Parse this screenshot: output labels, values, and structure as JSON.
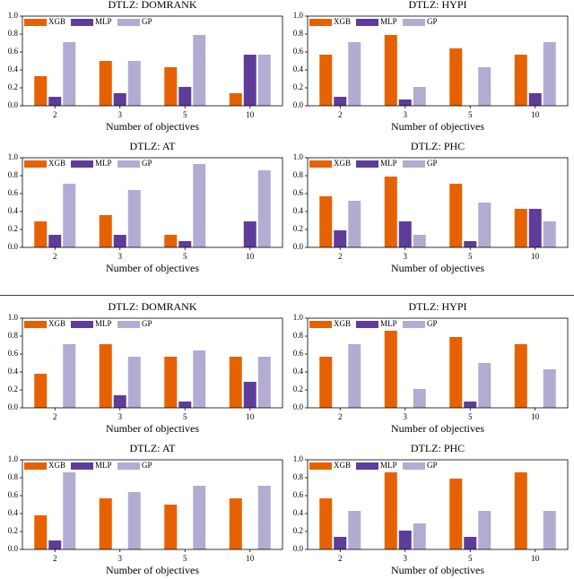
{
  "chart_data": [
    {
      "type": "bar",
      "title": "DTLZ: DOMRANK",
      "x_label": "Number of objectives",
      "categories": [
        "2",
        "3",
        "5",
        "10"
      ],
      "series": [
        {
          "name": "XGB",
          "color": "#e66101",
          "values": [
            0.33,
            0.5,
            0.43,
            0.14
          ]
        },
        {
          "name": "MLP",
          "color": "#5e3c99",
          "values": [
            0.1,
            0.14,
            0.21,
            0.57
          ]
        },
        {
          "name": "GP",
          "color": "#b2abd2",
          "values": [
            0.71,
            0.5,
            0.79,
            0.57
          ]
        }
      ],
      "ylim": [
        0,
        1
      ],
      "yticks": [
        {
          "value": 0,
          "label": "0.0"
        },
        0.2,
        0.4,
        0.6,
        0.8,
        {
          "value": 1,
          "label": "1.0"
        }
      ],
      "legend": "upper left"
    },
    {
      "type": "bar",
      "title": "DTLZ: HYPI",
      "x_label": "Number of objectives",
      "categories": [
        "2",
        "3",
        "5",
        "10"
      ],
      "series": [
        {
          "name": "XGB",
          "color": "#e66101",
          "values": [
            0.57,
            0.79,
            0.64,
            0.57
          ]
        },
        {
          "name": "MLP",
          "color": "#5e3c99",
          "values": [
            0.1,
            0.07,
            0,
            0.14
          ]
        },
        {
          "name": "GP",
          "color": "#b2abd2",
          "values": [
            0.71,
            0.21,
            0.43,
            0.71
          ]
        }
      ],
      "ylim": [
        0,
        1
      ],
      "yticks": [
        {
          "value": 0,
          "label": "0.0"
        },
        0.2,
        0.4,
        0.6,
        0.8,
        {
          "value": 1,
          "label": "1.0"
        }
      ],
      "legend": "upper left"
    },
    {
      "type": "bar",
      "title": "DTLZ: AT",
      "x_label": "Number of objectives",
      "categories": [
        "2",
        "3",
        "5",
        "10"
      ],
      "series": [
        {
          "name": "XGB",
          "color": "#e66101",
          "values": [
            0.29,
            0.36,
            0.14,
            0
          ]
        },
        {
          "name": "MLP",
          "color": "#5e3c99",
          "values": [
            0.14,
            0.14,
            0.07,
            0.29
          ]
        },
        {
          "name": "GP",
          "color": "#b2abd2",
          "values": [
            0.71,
            0.64,
            0.93,
            0.86
          ]
        }
      ],
      "ylim": [
        0,
        1
      ],
      "yticks": [
        {
          "value": 0,
          "label": "0.0"
        },
        0.2,
        0.4,
        0.6,
        0.8,
        {
          "value": 1,
          "label": "1.0"
        }
      ],
      "legend": "upper left"
    },
    {
      "type": "bar",
      "title": "DTLZ: PHC",
      "x_label": "Number of objectives",
      "categories": [
        "2",
        "3",
        "5",
        "10"
      ],
      "series": [
        {
          "name": "XGB",
          "color": "#e66101",
          "values": [
            0.57,
            0.79,
            0.71,
            0.43
          ]
        },
        {
          "name": "MLP",
          "color": "#5e3c99",
          "values": [
            0.19,
            0.29,
            0.07,
            0.43
          ]
        },
        {
          "name": "GP",
          "color": "#b2abd2",
          "values": [
            0.52,
            0.14,
            0.5,
            0.29
          ]
        }
      ],
      "ylim": [
        0,
        1
      ],
      "yticks": [
        {
          "value": 0,
          "label": "0.0"
        },
        0.2,
        0.4,
        0.6,
        0.8,
        {
          "value": 1,
          "label": "1.0"
        }
      ],
      "legend": "upper left"
    },
    {
      "type": "bar",
      "title": "DTLZ: DOMRANK",
      "x_label": "Number of objectives",
      "categories": [
        "2",
        "3",
        "5",
        "10"
      ],
      "series": [
        {
          "name": "XGB",
          "color": "#e66101",
          "values": [
            0.38,
            0.71,
            0.57,
            0.57
          ]
        },
        {
          "name": "MLP",
          "color": "#5e3c99",
          "values": [
            0,
            0.14,
            0.07,
            0.29
          ]
        },
        {
          "name": "GP",
          "color": "#b2abd2",
          "values": [
            0.71,
            0.57,
            0.64,
            0.57
          ]
        }
      ],
      "ylim": [
        0,
        1
      ],
      "yticks": [
        {
          "value": 0,
          "label": "0.0"
        },
        0.2,
        0.4,
        0.6,
        0.8,
        {
          "value": 1,
          "label": "1.0"
        }
      ],
      "legend": "upper left"
    },
    {
      "type": "bar",
      "title": "DTLZ: HYPI",
      "x_label": "Number of objectives",
      "categories": [
        "2",
        "3",
        "5",
        "10"
      ],
      "series": [
        {
          "name": "XGB",
          "color": "#e66101",
          "values": [
            0.57,
            0.86,
            0.79,
            0.71
          ]
        },
        {
          "name": "MLP",
          "color": "#5e3c99",
          "values": [
            0,
            0,
            0.07,
            0
          ]
        },
        {
          "name": "GP",
          "color": "#b2abd2",
          "values": [
            0.71,
            0.21,
            0.5,
            0.43
          ]
        }
      ],
      "ylim": [
        0,
        1
      ],
      "yticks": [
        {
          "value": 0,
          "label": "0.0"
        },
        0.2,
        0.4,
        0.6,
        0.8,
        {
          "value": 1,
          "label": "1.0"
        }
      ],
      "legend": "upper left"
    },
    {
      "type": "bar",
      "title": "DTLZ: AT",
      "x_label": "Number of objectives",
      "categories": [
        "2",
        "3",
        "5",
        "10"
      ],
      "series": [
        {
          "name": "XGB",
          "color": "#e66101",
          "values": [
            0.38,
            0.57,
            0.5,
            0.57
          ]
        },
        {
          "name": "MLP",
          "color": "#5e3c99",
          "values": [
            0.1,
            0,
            0,
            0
          ]
        },
        {
          "name": "GP",
          "color": "#b2abd2",
          "values": [
            0.86,
            0.64,
            0.71,
            0.71
          ]
        }
      ],
      "ylim": [
        0,
        1
      ],
      "yticks": [
        {
          "value": 0,
          "label": "0.0"
        },
        0.2,
        0.4,
        0.6,
        0.8,
        {
          "value": 1,
          "label": "1.0"
        }
      ],
      "legend": "upper left"
    },
    {
      "type": "bar",
      "title": "DTLZ: PHC",
      "x_label": "Number of objectives",
      "categories": [
        "2",
        "3",
        "5",
        "10"
      ],
      "series": [
        {
          "name": "XGB",
          "color": "#e66101",
          "values": [
            0.57,
            0.86,
            0.79,
            0.86
          ]
        },
        {
          "name": "MLP",
          "color": "#5e3c99",
          "values": [
            0.14,
            0.21,
            0.14,
            0
          ]
        },
        {
          "name": "GP",
          "color": "#b2abd2",
          "values": [
            0.43,
            0.29,
            0.43,
            0.43
          ]
        }
      ],
      "ylim": [
        0,
        1
      ],
      "yticks": [
        {
          "value": 0,
          "label": "0.0"
        },
        0.2,
        0.4,
        0.6,
        0.8,
        {
          "value": 1,
          "label": "1.0"
        }
      ],
      "legend": "upper left"
    }
  ]
}
